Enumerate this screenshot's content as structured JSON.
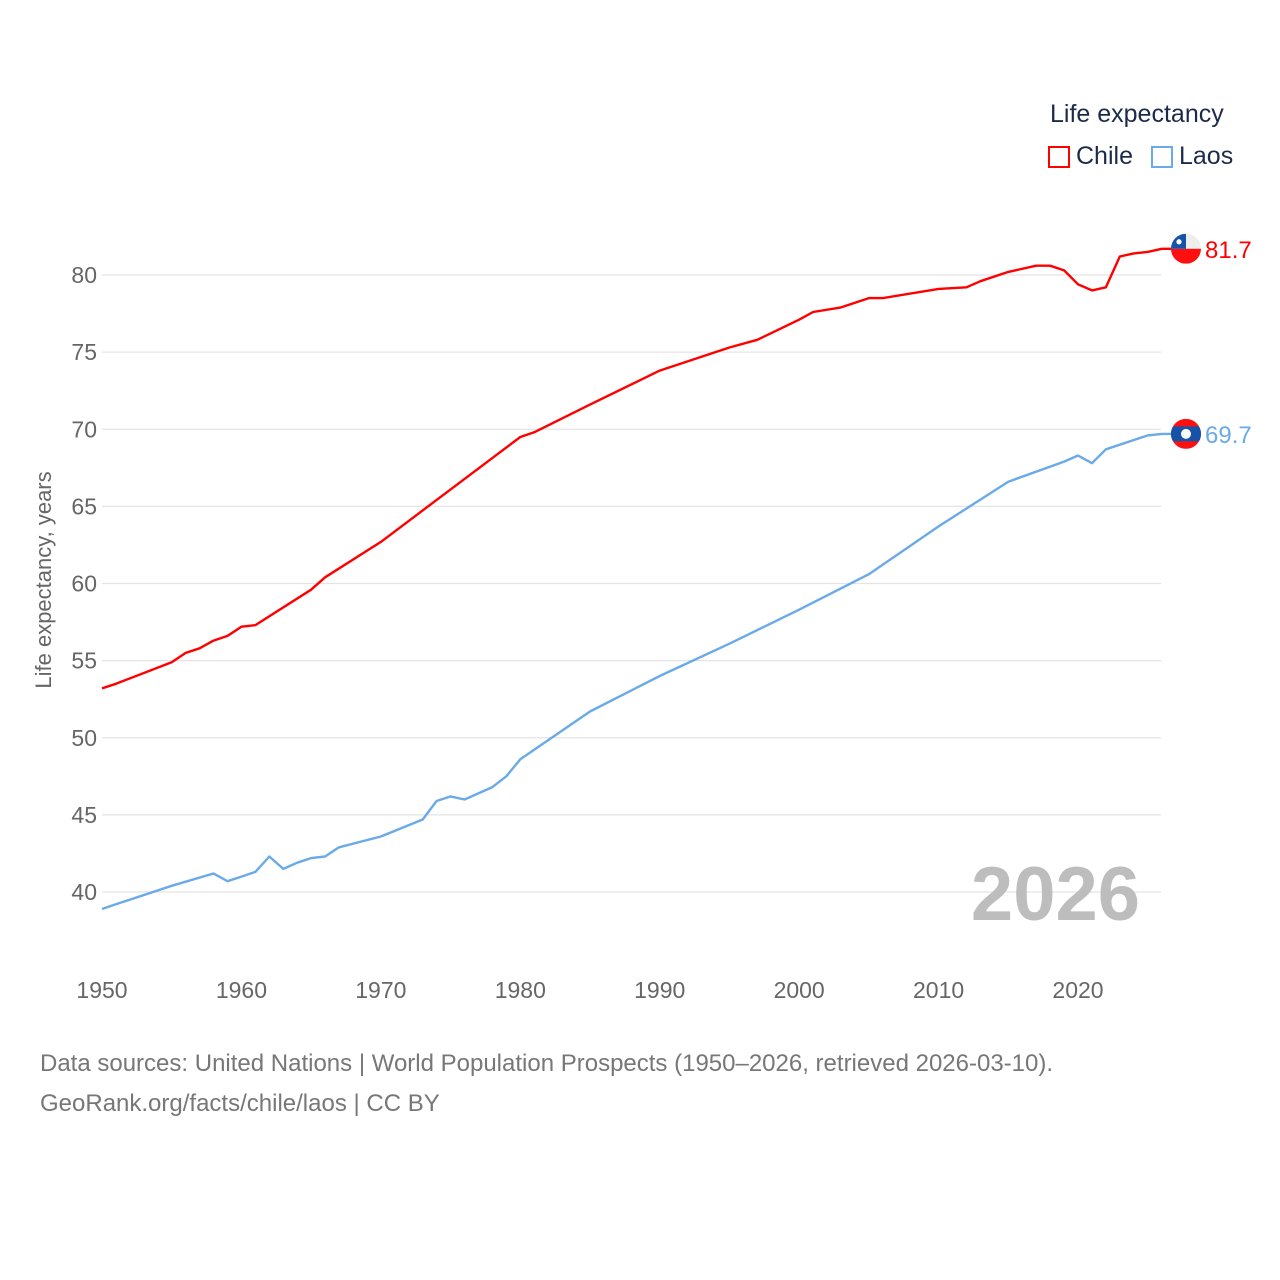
{
  "chart_data": {
    "type": "line",
    "legend_title": "Life expectancy",
    "ylabel": "Life expectancy, years",
    "xlabel": "",
    "xlim": [
      1950,
      2026
    ],
    "ylim": [
      37,
      83
    ],
    "x_ticks": [
      "1950",
      "1960",
      "1970",
      "1980",
      "1990",
      "2000",
      "2010",
      "2020"
    ],
    "y_ticks": [
      "40",
      "45",
      "50",
      "55",
      "60",
      "65",
      "70",
      "75",
      "80"
    ],
    "grid": true,
    "legend_position": "top-right",
    "year_label": "2026",
    "series": [
      {
        "name": "Chile",
        "color": "#ff0000",
        "end_label": "81.7",
        "x": [
          1950,
          1951,
          1955,
          1956,
          1957,
          1958,
          1959,
          1960,
          1961,
          1965,
          1966,
          1970,
          1975,
          1980,
          1981,
          1985,
          1990,
          1995,
          1997,
          2000,
          2001,
          2003,
          2005,
          2006,
          2010,
          2012,
          2013,
          2015,
          2017,
          2018,
          2019,
          2020,
          2021,
          2022,
          2023,
          2024,
          2025,
          2026
        ],
        "y": [
          53.2,
          53.5,
          54.9,
          55.5,
          55.8,
          56.3,
          56.6,
          57.2,
          57.3,
          59.6,
          60.4,
          62.7,
          66.1,
          69.5,
          69.8,
          71.6,
          73.8,
          75.3,
          75.8,
          77.1,
          77.6,
          77.9,
          78.5,
          78.5,
          79.1,
          79.2,
          79.6,
          80.2,
          80.6,
          80.6,
          80.3,
          79.4,
          79.0,
          79.2,
          81.2,
          81.4,
          81.5,
          81.7
        ]
      },
      {
        "name": "Laos",
        "color": "#6aaae8",
        "end_label": "69.7",
        "x": [
          1950,
          1951,
          1955,
          1958,
          1959,
          1960,
          1961,
          1962,
          1963,
          1964,
          1965,
          1966,
          1967,
          1970,
          1973,
          1974,
          1975,
          1976,
          1978,
          1979,
          1980,
          1985,
          1990,
          1995,
          2000,
          2005,
          2010,
          2015,
          2019,
          2020,
          2021,
          2022,
          2025,
          2026
        ],
        "y": [
          38.9,
          39.2,
          40.4,
          41.2,
          40.7,
          41.0,
          41.3,
          42.3,
          41.5,
          41.9,
          42.2,
          42.3,
          42.9,
          43.6,
          44.7,
          45.9,
          46.2,
          46.0,
          46.8,
          47.5,
          48.6,
          51.7,
          54.0,
          56.1,
          58.3,
          60.6,
          63.7,
          66.6,
          67.9,
          68.3,
          67.8,
          68.7,
          69.6,
          69.7
        ]
      }
    ]
  },
  "source": {
    "line1": "Data sources: United Nations | World Population Prospects (1950–2026, retrieved 2026-03-10).",
    "line2": "GeoRank.org/facts/chile/laos | CC BY"
  }
}
